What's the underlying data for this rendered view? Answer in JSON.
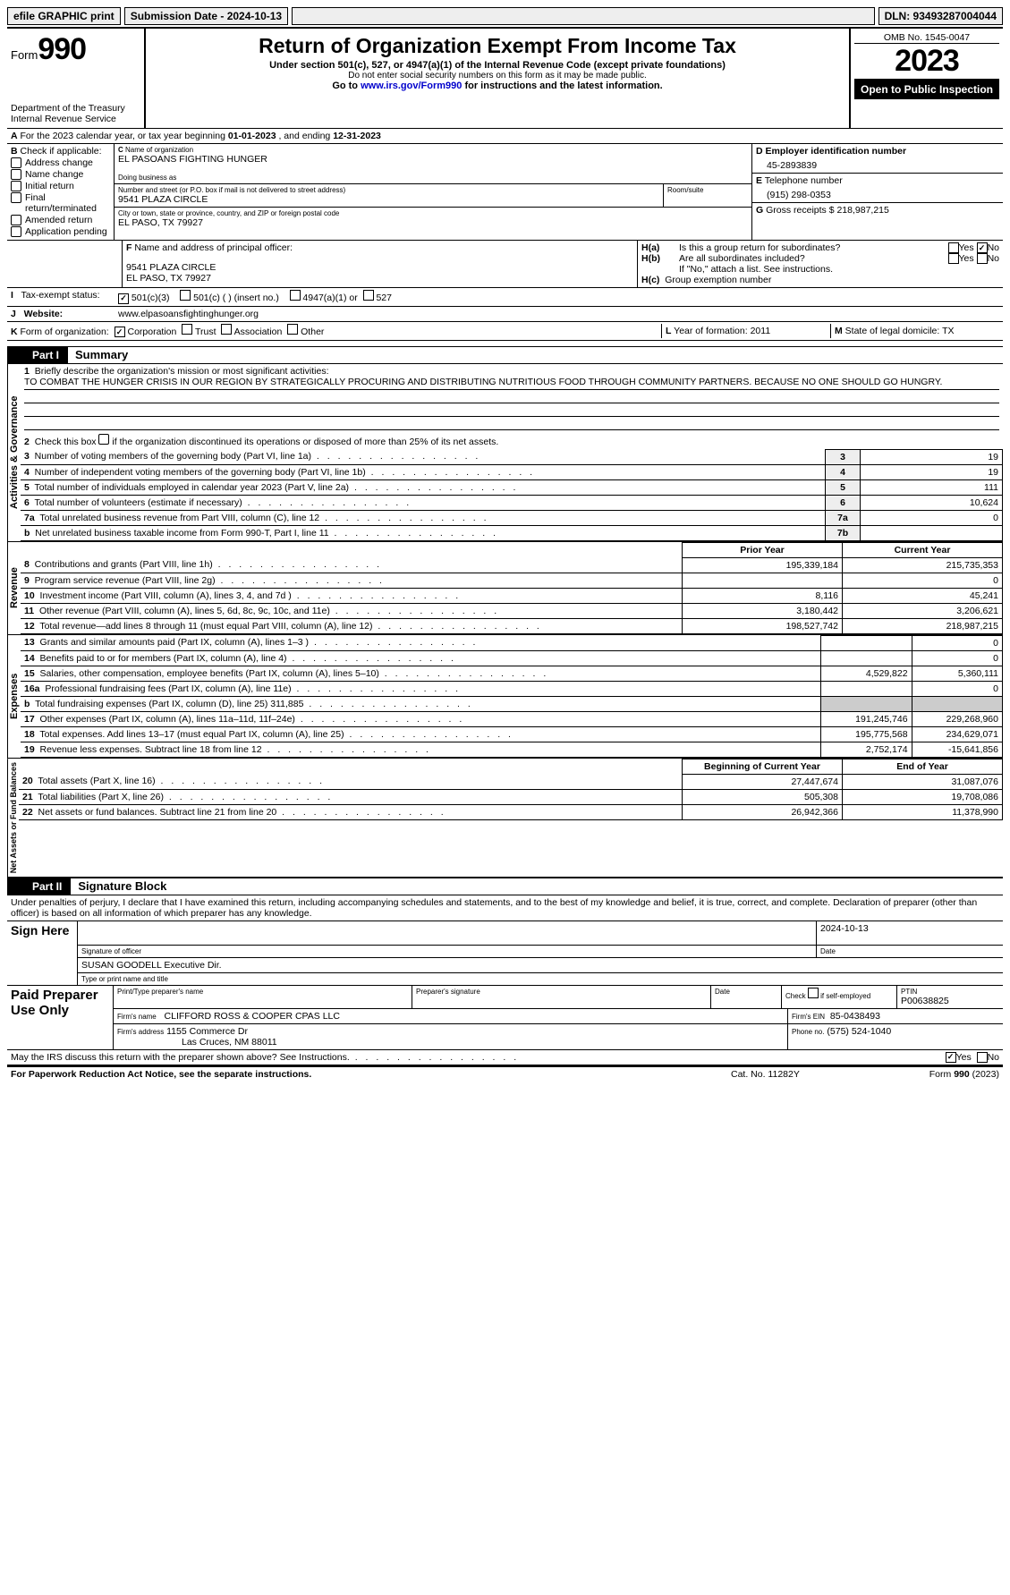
{
  "topbar": {
    "efile": "efile GRAPHIC print",
    "submission_lbl": "Submission Date - 2024-10-13",
    "dln_lbl": "DLN: 93493287004044"
  },
  "header": {
    "form_word": "Form",
    "form_num": "990",
    "dept": "Department of the Treasury",
    "irs": "Internal Revenue Service",
    "title": "Return of Organization Exempt From Income Tax",
    "sub1": "Under section 501(c), 527, or 4947(a)(1) of the Internal Revenue Code (except private foundations)",
    "sub2": "Do not enter social security numbers on this form as it may be made public.",
    "sub3_pre": "Go to ",
    "sub3_link": "www.irs.gov/Form990",
    "sub3_post": " for instructions and the latest information.",
    "omb": "OMB No. 1545-0047",
    "year": "2023",
    "open": "Open to Public Inspection"
  },
  "A": {
    "text_pre": "For the 2023 calendar year, or tax year beginning ",
    "begin": "01-01-2023",
    "mid": " , and ending ",
    "end": "12-31-2023"
  },
  "B": {
    "label": "Check if applicable:",
    "opts": [
      "Address change",
      "Name change",
      "Initial return",
      "Final return/terminated",
      "Amended return",
      "Application pending"
    ]
  },
  "C": {
    "name_lbl": "Name of organization",
    "name": "EL PASOANS FIGHTING HUNGER",
    "dba_lbl": "Doing business as",
    "addr_lbl": "Number and street (or P.O. box if mail is not delivered to street address)",
    "room_lbl": "Room/suite",
    "addr": "9541 PLAZA CIRCLE",
    "city_lbl": "City or town, state or province, country, and ZIP or foreign postal code",
    "city": "EL PASO, TX  79927"
  },
  "D": {
    "lbl": "Employer identification number",
    "val": "45-2893839"
  },
  "E": {
    "lbl": "Telephone number",
    "val": "(915) 298-0353"
  },
  "G": {
    "lbl": "Gross receipts $",
    "val": "218,987,215"
  },
  "F": {
    "lbl": "Name and address of principal officer:",
    "line1": "9541 PLAZA CIRCLE",
    "line2": "EL PASO, TX  79927"
  },
  "H": {
    "a": "Is this a group return for subordinates?",
    "b": "Are all subordinates included?",
    "b_note": "If \"No,\" attach a list. See instructions.",
    "c": "Group exemption number",
    "yes": "Yes",
    "no": "No"
  },
  "I": {
    "lbl": "Tax-exempt status:",
    "o1": "501(c)(3)",
    "o2": "501(c) (  ) (insert no.)",
    "o3": "4947(a)(1) or",
    "o4": "527"
  },
  "J": {
    "lbl": "Website:",
    "val": "www.elpasoansfightinghunger.org"
  },
  "K": {
    "lbl": "Form of organization:",
    "o1": "Corporation",
    "o2": "Trust",
    "o3": "Association",
    "o4": "Other"
  },
  "L": {
    "lbl": "Year of formation:",
    "val": "2011"
  },
  "M": {
    "lbl": "State of legal domicile:",
    "val": "TX"
  },
  "parts": {
    "p1": "Part I",
    "p1t": "Summary",
    "p2": "Part II",
    "p2t": "Signature Block"
  },
  "sidelabels": {
    "s1": "Activities & Governance",
    "s2": "Revenue",
    "s3": "Expenses",
    "s4": "Net Assets or Fund Balances"
  },
  "summary": {
    "l1_lbl": "Briefly describe the organization's mission or most significant activities:",
    "l1_txt": "TO COMBAT THE HUNGER CRISIS IN OUR REGION BY STRATEGICALLY PROCURING AND DISTRIBUTING NUTRITIOUS FOOD THROUGH COMMUNITY PARTNERS. BECAUSE NO ONE SHOULD GO HUNGRY.",
    "l2": "Check this box        if the organization discontinued its operations or disposed of more than 25% of its net assets.",
    "rows_ag": [
      {
        "n": "3",
        "t": "Number of voting members of the governing body (Part VI, line 1a)",
        "box": "3",
        "val": "19"
      },
      {
        "n": "4",
        "t": "Number of independent voting members of the governing body (Part VI, line 1b)",
        "box": "4",
        "val": "19"
      },
      {
        "n": "5",
        "t": "Total number of individuals employed in calendar year 2023 (Part V, line 2a)",
        "box": "5",
        "val": "111"
      },
      {
        "n": "6",
        "t": "Total number of volunteers (estimate if necessary)",
        "box": "6",
        "val": "10,624"
      },
      {
        "n": "7a",
        "t": "Total unrelated business revenue from Part VIII, column (C), line 12",
        "box": "7a",
        "val": "0"
      },
      {
        "n": "b",
        "t": "Net unrelated business taxable income from Form 990-T, Part I, line 11",
        "box": "7b",
        "val": ""
      }
    ],
    "hdr_prior": "Prior Year",
    "hdr_curr": "Current Year",
    "rows_rev": [
      {
        "n": "8",
        "t": "Contributions and grants (Part VIII, line 1h)",
        "p": "195,339,184",
        "c": "215,735,353"
      },
      {
        "n": "9",
        "t": "Program service revenue (Part VIII, line 2g)",
        "p": "",
        "c": "0"
      },
      {
        "n": "10",
        "t": "Investment income (Part VIII, column (A), lines 3, 4, and 7d )",
        "p": "8,116",
        "c": "45,241"
      },
      {
        "n": "11",
        "t": "Other revenue (Part VIII, column (A), lines 5, 6d, 8c, 9c, 10c, and 11e)",
        "p": "3,180,442",
        "c": "3,206,621"
      },
      {
        "n": "12",
        "t": "Total revenue—add lines 8 through 11 (must equal Part VIII, column (A), line 12)",
        "p": "198,527,742",
        "c": "218,987,215"
      }
    ],
    "rows_exp": [
      {
        "n": "13",
        "t": "Grants and similar amounts paid (Part IX, column (A), lines 1–3 )",
        "p": "",
        "c": "0"
      },
      {
        "n": "14",
        "t": "Benefits paid to or for members (Part IX, column (A), line 4)",
        "p": "",
        "c": "0"
      },
      {
        "n": "15",
        "t": "Salaries, other compensation, employee benefits (Part IX, column (A), lines 5–10)",
        "p": "4,529,822",
        "c": "5,360,111"
      },
      {
        "n": "16a",
        "t": "Professional fundraising fees (Part IX, column (A), line 11e)",
        "p": "",
        "c": "0"
      },
      {
        "n": "b",
        "t": "Total fundraising expenses (Part IX, column (D), line 25) 311,885",
        "p": "GRAY",
        "c": "GRAY"
      },
      {
        "n": "17",
        "t": "Other expenses (Part IX, column (A), lines 11a–11d, 11f–24e)",
        "p": "191,245,746",
        "c": "229,268,960"
      },
      {
        "n": "18",
        "t": "Total expenses. Add lines 13–17 (must equal Part IX, column (A), line 25)",
        "p": "195,775,568",
        "c": "234,629,071"
      },
      {
        "n": "19",
        "t": "Revenue less expenses. Subtract line 18 from line 12",
        "p": "2,752,174",
        "c": "-15,641,856"
      }
    ],
    "hdr_beg": "Beginning of Current Year",
    "hdr_end": "End of Year",
    "rows_na": [
      {
        "n": "20",
        "t": "Total assets (Part X, line 16)",
        "p": "27,447,674",
        "c": "31,087,076"
      },
      {
        "n": "21",
        "t": "Total liabilities (Part X, line 26)",
        "p": "505,308",
        "c": "19,708,086"
      },
      {
        "n": "22",
        "t": "Net assets or fund balances. Subtract line 21 from line 20",
        "p": "26,942,366",
        "c": "11,378,990"
      }
    ]
  },
  "sig": {
    "decl": "Under penalties of perjury, I declare that I have examined this return, including accompanying schedules and statements, and to the best of my knowledge and belief, it is true, correct, and complete. Declaration of preparer (other than officer) is based on all information of which preparer has any knowledge.",
    "sign_here": "Sign Here",
    "sig_officer": "Signature of officer",
    "officer": "SUSAN GOODELL Executive Dir.",
    "type_name": "Type or print name and title",
    "date_lbl": "Date",
    "date": "2024-10-13",
    "paid": "Paid Preparer Use Only",
    "pt_name_lbl": "Print/Type preparer's name",
    "pt_sig_lbl": "Preparer's signature",
    "chk_self": "Check        if self-employed",
    "ptin_lbl": "PTIN",
    "ptin": "P00638825",
    "firm_name_lbl": "Firm's name",
    "firm_name": "CLIFFORD ROSS & COOPER CPAS LLC",
    "firm_ein_lbl": "Firm's EIN",
    "firm_ein": "85-0438493",
    "firm_addr_lbl": "Firm's address",
    "firm_addr1": "1155 Commerce Dr",
    "firm_addr2": "Las Cruces, NM  88011",
    "phone_lbl": "Phone no.",
    "phone": "(575) 524-1040",
    "discuss": "May the IRS discuss this return with the preparer shown above? See Instructions."
  },
  "footer": {
    "pra": "For Paperwork Reduction Act Notice, see the separate instructions.",
    "cat": "Cat. No. 11282Y",
    "form": "Form 990 (2023)"
  }
}
